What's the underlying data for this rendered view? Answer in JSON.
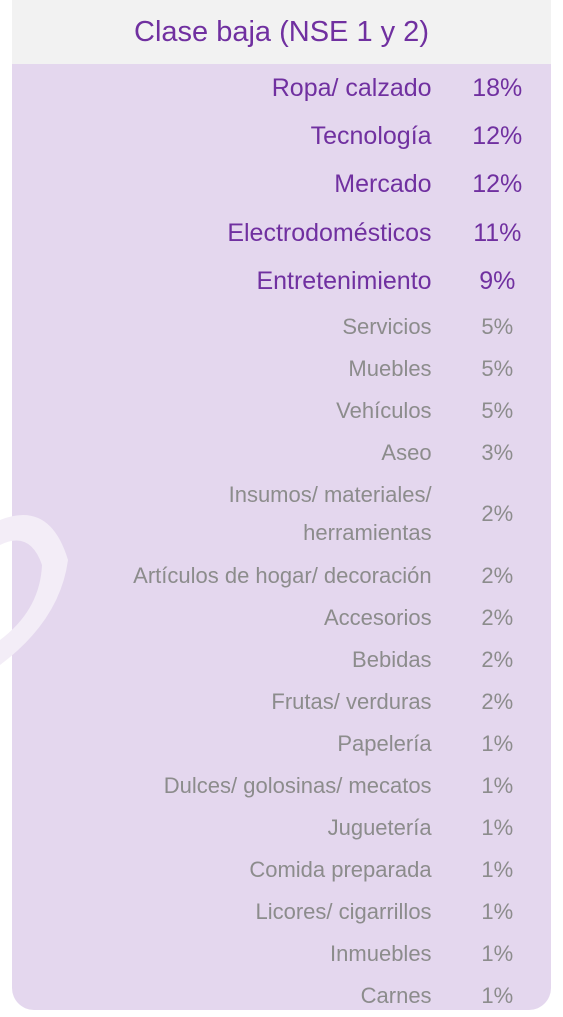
{
  "header": {
    "title": "Clase baja (NSE 1 y 2)"
  },
  "table": {
    "rows": [
      [
        "Ropa/ calzado",
        "18%"
      ],
      [
        "Tecnología",
        "12%"
      ],
      [
        "Mercado",
        "12%"
      ],
      [
        "Electrodomésticos",
        "11%"
      ],
      [
        "Entretenimiento",
        "9%"
      ],
      [
        "Servicios",
        "5%"
      ],
      [
        "Muebles",
        "5%"
      ],
      [
        "Vehículos",
        "5%"
      ],
      [
        "Aseo",
        "3%"
      ],
      [
        "Insumos/ materiales/ herramientas",
        "2%"
      ],
      [
        "Artículos de hogar/ decoración",
        "2%"
      ],
      [
        "Accesorios",
        "2%"
      ],
      [
        "Bebidas",
        "2%"
      ],
      [
        "Frutas/ verduras",
        "2%"
      ],
      [
        "Papelería",
        "1%"
      ],
      [
        "Dulces/ golosinas/ mecatos",
        "1%"
      ],
      [
        "Juguetería",
        "1%"
      ],
      [
        "Comida preparada",
        "1%"
      ],
      [
        "Licores/ cigarrillos",
        "1%"
      ],
      [
        "Inmuebles",
        "1%"
      ],
      [
        "Carnes",
        "1%"
      ]
    ]
  }
}
